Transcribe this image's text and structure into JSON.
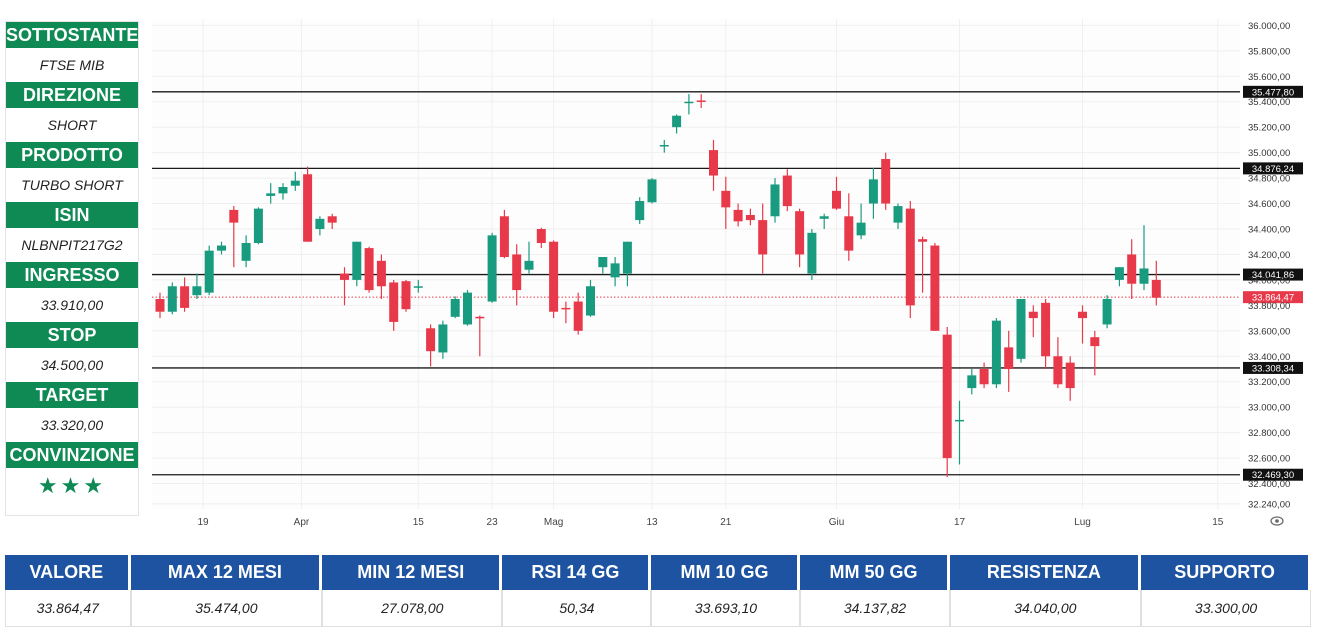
{
  "panel": [
    {
      "label": "SOTTOSTANTE",
      "value": "FTSE MIB"
    },
    {
      "label": "DIREZIONE",
      "value": "SHORT"
    },
    {
      "label": "PRODOTTO",
      "value": "TURBO SHORT"
    },
    {
      "label": "ISIN",
      "value": "NLBNPIT217G2"
    },
    {
      "label": "INGRESSO",
      "value": "33.910,00"
    },
    {
      "label": "STOP",
      "value": "34.500,00"
    },
    {
      "label": "TARGET",
      "value": "33.320,00"
    },
    {
      "label": "CONVINZIONE",
      "value": "★★★"
    }
  ],
  "stats": {
    "headers": [
      "VALORE",
      "MAX 12 MESI",
      "MIN 12 MESI",
      "RSI 14 GG",
      "MM 10 GG",
      "MM 50 GG",
      "RESISTENZA",
      "SUPPORTO"
    ],
    "values": [
      "33.864,47",
      "35.474,00",
      "27.078,00",
      "50,34",
      "33.693,10",
      "34.137,82",
      "34.040,00",
      "33.300,00"
    ]
  },
  "colors": {
    "up": "#199b80",
    "down": "#e8394a",
    "header_green": "#0f8a55",
    "header_blue": "#1d53a0"
  },
  "chart_data": {
    "type": "candlestick",
    "ylim": [
      32200,
      36050
    ],
    "yticks": [
      "36.000,00",
      "35.800,00",
      "35.600,00",
      "35.400,00",
      "35.200,00",
      "35.000,00",
      "34.800,00",
      "34.600,00",
      "34.400,00",
      "34.200,00",
      "34.000,00",
      "33.800,00",
      "33.600,00",
      "33.400,00",
      "33.200,00",
      "33.000,00",
      "32.800,00",
      "32.600,00",
      "32.400,00",
      "32.240,00"
    ],
    "ytick_values": [
      36000,
      35800,
      35600,
      35400,
      35200,
      35000,
      34800,
      34600,
      34400,
      34200,
      34000,
      33800,
      33600,
      33400,
      33200,
      33000,
      32800,
      32600,
      32400,
      32240
    ],
    "xticks": [
      {
        "label": "19",
        "i": 3.5
      },
      {
        "label": "Apr",
        "i": 11.5
      },
      {
        "label": "15",
        "i": 21
      },
      {
        "label": "23",
        "i": 27
      },
      {
        "label": "Mag",
        "i": 32
      },
      {
        "label": "13",
        "i": 40
      },
      {
        "label": "21",
        "i": 46
      },
      {
        "label": "Giu",
        "i": 55
      },
      {
        "label": "17",
        "i": 65
      },
      {
        "label": "Lug",
        "i": 75
      },
      {
        "label": "15",
        "i": 86
      }
    ],
    "levels": [
      {
        "value": 35477.8,
        "label": "35.477,80"
      },
      {
        "value": 34876.24,
        "label": "34.876,24"
      },
      {
        "value": 34041.86,
        "label": "34.041,86"
      },
      {
        "value": 33308.34,
        "label": "33.308,34"
      },
      {
        "value": 32469.3,
        "label": "32.469,30"
      }
    ],
    "last_price": {
      "value": 33864.47,
      "label": "33.864,47"
    },
    "candles": [
      [
        33850,
        33900,
        33700,
        33750
      ],
      [
        33750,
        33980,
        33730,
        33950
      ],
      [
        33950,
        34020,
        33750,
        33780
      ],
      [
        33880,
        34050,
        33850,
        33950
      ],
      [
        33900,
        34270,
        33880,
        34230
      ],
      [
        34230,
        34300,
        34200,
        34270
      ],
      [
        34550,
        34580,
        34100,
        34450
      ],
      [
        34150,
        34350,
        34100,
        34290
      ],
      [
        34290,
        34570,
        34280,
        34560
      ],
      [
        34660,
        34760,
        34600,
        34680
      ],
      [
        34680,
        34760,
        34630,
        34730
      ],
      [
        34740,
        34850,
        34700,
        34780
      ],
      [
        34830,
        34890,
        34300,
        34300
      ],
      [
        34400,
        34500,
        34350,
        34480
      ],
      [
        34500,
        34520,
        34400,
        34450
      ],
      [
        34050,
        34100,
        33800,
        34000
      ],
      [
        34000,
        34300,
        33950,
        34300
      ],
      [
        34250,
        34260,
        33900,
        33920
      ],
      [
        34150,
        34200,
        33850,
        33950
      ],
      [
        33980,
        34000,
        33600,
        33670
      ],
      [
        33990,
        34000,
        33750,
        33770
      ],
      [
        33950,
        34000,
        33900,
        33950
      ],
      [
        33620,
        33650,
        33320,
        33440
      ],
      [
        33430,
        33680,
        33380,
        33650
      ],
      [
        33710,
        33870,
        33700,
        33850
      ],
      [
        33650,
        33920,
        33640,
        33900
      ],
      [
        33710,
        33720,
        33400,
        33700
      ],
      [
        33830,
        34370,
        33820,
        34350
      ],
      [
        34500,
        34550,
        34170,
        34180
      ],
      [
        34200,
        34280,
        33800,
        33920
      ],
      [
        34080,
        34300,
        34050,
        34150
      ],
      [
        34400,
        34410,
        34250,
        34290
      ],
      [
        34300,
        34310,
        33700,
        33750
      ],
      [
        33780,
        33830,
        33660,
        33770
      ],
      [
        33830,
        33900,
        33570,
        33600
      ],
      [
        33720,
        34000,
        33710,
        33950
      ],
      [
        34100,
        34180,
        34050,
        34180
      ],
      [
        34020,
        34180,
        33950,
        34130
      ],
      [
        34050,
        34300,
        33950,
        34300
      ],
      [
        34470,
        34650,
        34440,
        34620
      ],
      [
        34610,
        34800,
        34600,
        34790
      ],
      [
        35050,
        35100,
        35000,
        35060
      ],
      [
        35200,
        35300,
        35150,
        35290
      ],
      [
        35390,
        35460,
        35300,
        35400
      ],
      [
        35410,
        35460,
        35350,
        35400
      ],
      [
        35020,
        35100,
        34700,
        34820
      ],
      [
        34700,
        34810,
        34400,
        34570
      ],
      [
        34550,
        34600,
        34420,
        34460
      ],
      [
        34510,
        34560,
        34430,
        34470
      ],
      [
        34470,
        34600,
        34050,
        34200
      ],
      [
        34500,
        34800,
        34450,
        34750
      ],
      [
        34820,
        34870,
        34540,
        34580
      ],
      [
        34540,
        34560,
        34100,
        34200
      ],
      [
        34050,
        34400,
        34000,
        34370
      ],
      [
        34480,
        34520,
        34400,
        34500
      ],
      [
        34700,
        34810,
        34550,
        34560
      ],
      [
        34500,
        34680,
        34150,
        34230
      ],
      [
        34350,
        34600,
        34320,
        34450
      ],
      [
        34600,
        34880,
        34480,
        34790
      ],
      [
        34950,
        35000,
        34550,
        34600
      ],
      [
        34450,
        34600,
        34400,
        34580
      ],
      [
        34560,
        34620,
        33700,
        33800
      ],
      [
        34320,
        34340,
        33900,
        34300
      ],
      [
        34270,
        34290,
        33600,
        33600
      ],
      [
        33570,
        33630,
        32450,
        32600
      ],
      [
        32900,
        33050,
        32550,
        32900
      ],
      [
        33150,
        33300,
        33100,
        33250
      ],
      [
        33300,
        33350,
        33150,
        33180
      ],
      [
        33180,
        33700,
        33150,
        33680
      ],
      [
        33470,
        33600,
        33120,
        33300
      ],
      [
        33380,
        33850,
        33350,
        33850
      ],
      [
        33750,
        33800,
        33550,
        33700
      ],
      [
        33820,
        33850,
        33300,
        33400
      ],
      [
        33400,
        33550,
        33150,
        33180
      ],
      [
        33350,
        33400,
        33050,
        33150
      ],
      [
        33750,
        33800,
        33500,
        33700
      ],
      [
        33550,
        33600,
        33250,
        33480
      ],
      [
        33650,
        33880,
        33620,
        33850
      ],
      [
        34000,
        34100,
        33950,
        34100
      ],
      [
        34200,
        34320,
        33850,
        33970
      ],
      [
        33970,
        34430,
        33920,
        34090
      ],
      [
        34000,
        34150,
        33800,
        33860
      ]
    ]
  }
}
